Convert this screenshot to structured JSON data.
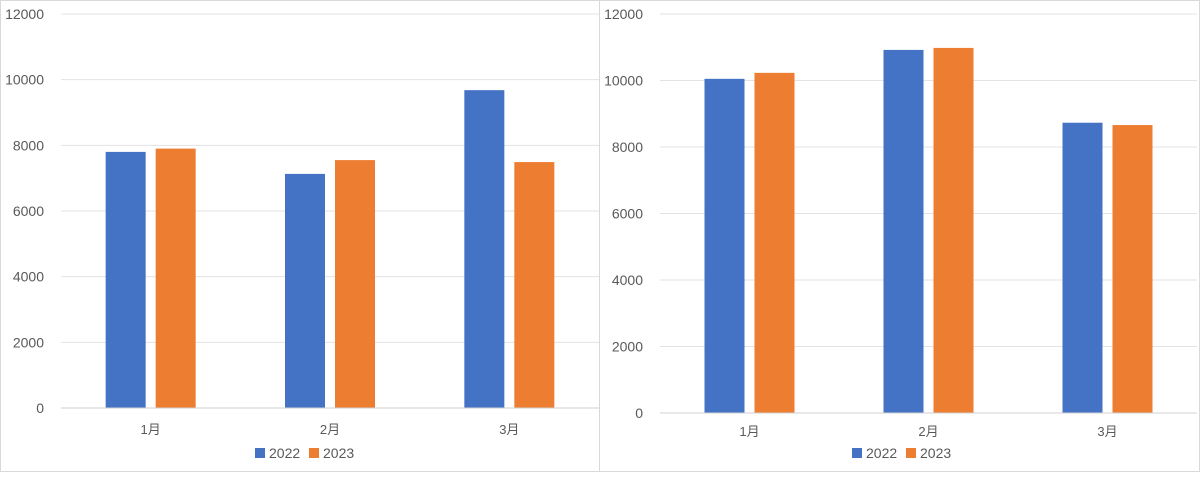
{
  "chart_data": [
    {
      "type": "bar",
      "categories": [
        "1月",
        "2月",
        "3月"
      ],
      "series": [
        {
          "name": "2022",
          "values": [
            7800,
            7130,
            9680
          ]
        },
        {
          "name": "2023",
          "values": [
            7900,
            7550,
            7490
          ]
        }
      ],
      "ylim": [
        0,
        12000
      ],
      "yticks": [
        "0",
        "2000",
        "4000",
        "6000",
        "8000",
        "10000",
        "12000"
      ],
      "grid": true,
      "legend": "bottom"
    },
    {
      "type": "bar",
      "categories": [
        "1月",
        "2月",
        "3月"
      ],
      "series": [
        {
          "name": "2022",
          "values": [
            10050,
            10920,
            8730
          ]
        },
        {
          "name": "2023",
          "values": [
            10230,
            10980,
            8660
          ]
        }
      ],
      "ylim": [
        0,
        12000
      ],
      "yticks": [
        "0",
        "2000",
        "4000",
        "6000",
        "8000",
        "10000",
        "12000"
      ],
      "grid": true,
      "legend": "bottom"
    }
  ],
  "colors": {
    "series_2022": "#4472c4",
    "series_2023": "#ed7d31",
    "grid": "#e3e3e3",
    "text": "#595959"
  }
}
